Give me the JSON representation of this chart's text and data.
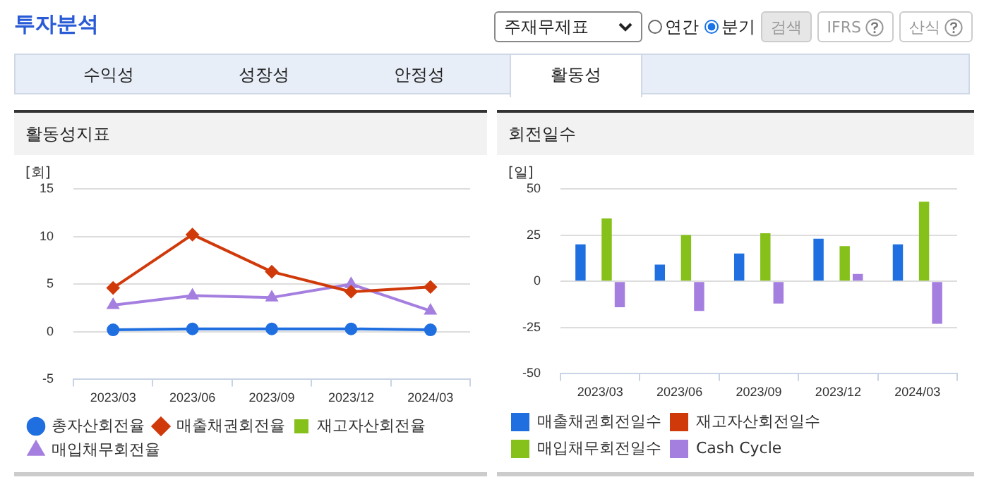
{
  "chart_data": [
    {
      "type": "other",
      "title": "투자분석",
      "annotations": [
        "주재무제표",
        "연간",
        "분기",
        "검색",
        "IFRS",
        "산식",
        "수익성",
        "성장성",
        "안정성",
        "활동성"
      ]
    },
    {
      "type": "line",
      "title": "활동성지표",
      "ylabel": "[회]",
      "categories": [
        "2023/03",
        "2023/06",
        "2023/09",
        "2023/12",
        "2024/03"
      ],
      "ylim": [
        -5,
        15
      ],
      "yticks": [
        -5,
        0,
        5,
        10,
        15
      ],
      "grid": "y",
      "legend": "bottom",
      "series": [
        {
          "name": "총자산회전율",
          "color": "#1f6fe0",
          "marker": "circle",
          "values": [
            0.2,
            0.3,
            0.3,
            0.3,
            0.2
          ]
        },
        {
          "name": "매출채권회전율",
          "color": "#d03a0a",
          "marker": "diamond",
          "values": [
            4.6,
            10.2,
            6.3,
            4.2,
            4.7
          ]
        },
        {
          "name": "재고자산회전율",
          "color": "#86c01a",
          "marker": "square",
          "values": [
            null,
            null,
            null,
            null,
            null
          ]
        },
        {
          "name": "매입채무회전율",
          "color": "#a57fe0",
          "marker": "triangle",
          "values": [
            2.8,
            3.8,
            3.6,
            5.0,
            2.2
          ]
        }
      ]
    },
    {
      "type": "bar",
      "title": "회전일수",
      "ylabel": "[일]",
      "categories": [
        "2023/03",
        "2023/06",
        "2023/09",
        "2023/12",
        "2024/03"
      ],
      "ylim": [
        -50,
        50
      ],
      "yticks": [
        -50,
        -25,
        0,
        25,
        50
      ],
      "grid": "y",
      "legend": "bottom",
      "series": [
        {
          "name": "매출채권회전일수",
          "color": "#1f6fe0",
          "values": [
            20,
            9,
            15,
            23,
            20
          ]
        },
        {
          "name": "재고자산회전일수",
          "color": "#d03a0a",
          "values": [
            null,
            null,
            null,
            null,
            null
          ]
        },
        {
          "name": "매입채무회전일수",
          "color": "#86c01a",
          "values": [
            34,
            25,
            26,
            19,
            43
          ]
        },
        {
          "name": "Cash Cycle",
          "color": "#a57fe0",
          "values": [
            -14,
            -16,
            -12,
            4,
            -23
          ]
        }
      ]
    }
  ]
}
